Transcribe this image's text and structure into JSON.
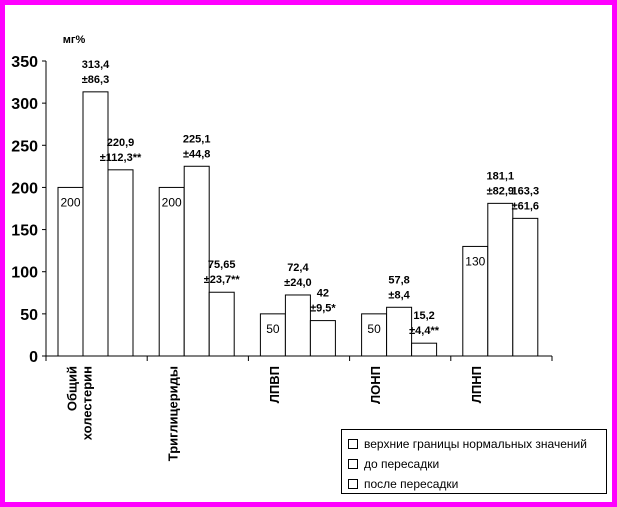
{
  "chart_data": {
    "type": "bar",
    "ylabel": "мг%",
    "ylim": [
      0,
      350
    ],
    "yticks": [
      0,
      50,
      100,
      150,
      200,
      250,
      300,
      350
    ],
    "categories": [
      [
        "Общий",
        "холестерин"
      ],
      [
        "Триглицериды"
      ],
      [
        "ЛПВП"
      ],
      [
        "ЛОНП"
      ],
      [
        "ЛПНП"
      ]
    ],
    "series": [
      {
        "name": "верхние границы нормальных значений",
        "values": [
          200,
          200,
          50,
          50,
          130
        ],
        "labels": [
          [
            "200"
          ],
          [
            "200"
          ],
          [
            "50"
          ],
          [
            "50"
          ],
          [
            "130"
          ]
        ]
      },
      {
        "name": "до пересадки",
        "values": [
          313.4,
          225.1,
          72.4,
          57.8,
          181.1
        ],
        "labels": [
          [
            "313,4",
            "±86,3"
          ],
          [
            "225,1",
            "±44,8"
          ],
          [
            "72,4",
            "±24,0"
          ],
          [
            "57,8",
            "±8,4"
          ],
          [
            "181,1",
            "±82,9"
          ]
        ]
      },
      {
        "name": "после пересадки",
        "values": [
          220.9,
          75.65,
          42,
          15.2,
          163.3
        ],
        "labels": [
          [
            "220,9",
            "±112,3**"
          ],
          [
            "75,65",
            "±23,7**"
          ],
          [
            "42",
            "±9,5*"
          ],
          [
            "15,2",
            "±4,4**"
          ],
          [
            "163,3",
            "±61,6"
          ]
        ]
      }
    ],
    "legend_position": "bottom-right",
    "grid": false,
    "bar_fill": "#FFFFFF",
    "bar_stroke": "#000000"
  },
  "frame_color": "#FF00FF"
}
